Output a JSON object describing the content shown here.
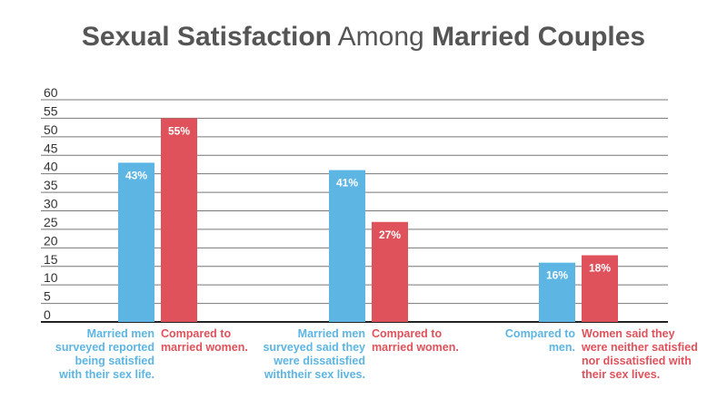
{
  "chart_data": {
    "type": "bar",
    "title_parts": [
      {
        "text": "Sexual Satisfaction",
        "weight": "bold"
      },
      {
        "text": " Among ",
        "weight": "normal"
      },
      {
        "text": "Married Couples",
        "weight": "bold"
      }
    ],
    "ylim": [
      0,
      60
    ],
    "yticks": [
      0,
      5,
      10,
      15,
      20,
      25,
      30,
      35,
      40,
      45,
      50,
      55,
      60
    ],
    "grid": true,
    "colors": {
      "blue": "#5db5e3",
      "red": "#e0525b",
      "title": "#555555",
      "grid": "#333333"
    },
    "groups": [
      {
        "bars": [
          {
            "value": 43,
            "label": "43%",
            "color": "blue",
            "caption": [
              "Married men",
              "surveyed reported",
              "being satisfied",
              "with their sex life."
            ],
            "caption_align": "end"
          },
          {
            "value": 55,
            "label": "55%",
            "color": "red",
            "caption": [
              "Compared to",
              "married women."
            ],
            "caption_align": "start"
          }
        ]
      },
      {
        "bars": [
          {
            "value": 41,
            "label": "41%",
            "color": "blue",
            "caption": [
              "Married men",
              "surveyed said they",
              "were dissatisfied",
              "withtheir sex lives."
            ],
            "caption_align": "end"
          },
          {
            "value": 27,
            "label": "27%",
            "color": "red",
            "caption": [
              "Compared to",
              "married women."
            ],
            "caption_align": "start"
          }
        ]
      },
      {
        "bars": [
          {
            "value": 16,
            "label": "16%",
            "color": "blue",
            "caption": [
              "Compared to",
              "men."
            ],
            "caption_align": "end"
          },
          {
            "value": 18,
            "label": "18%",
            "color": "red",
            "caption": [
              "Women said they",
              "were neither satisfied",
              "nor dissatisfied with",
              "their sex lives."
            ],
            "caption_align": "start"
          }
        ]
      }
    ]
  }
}
